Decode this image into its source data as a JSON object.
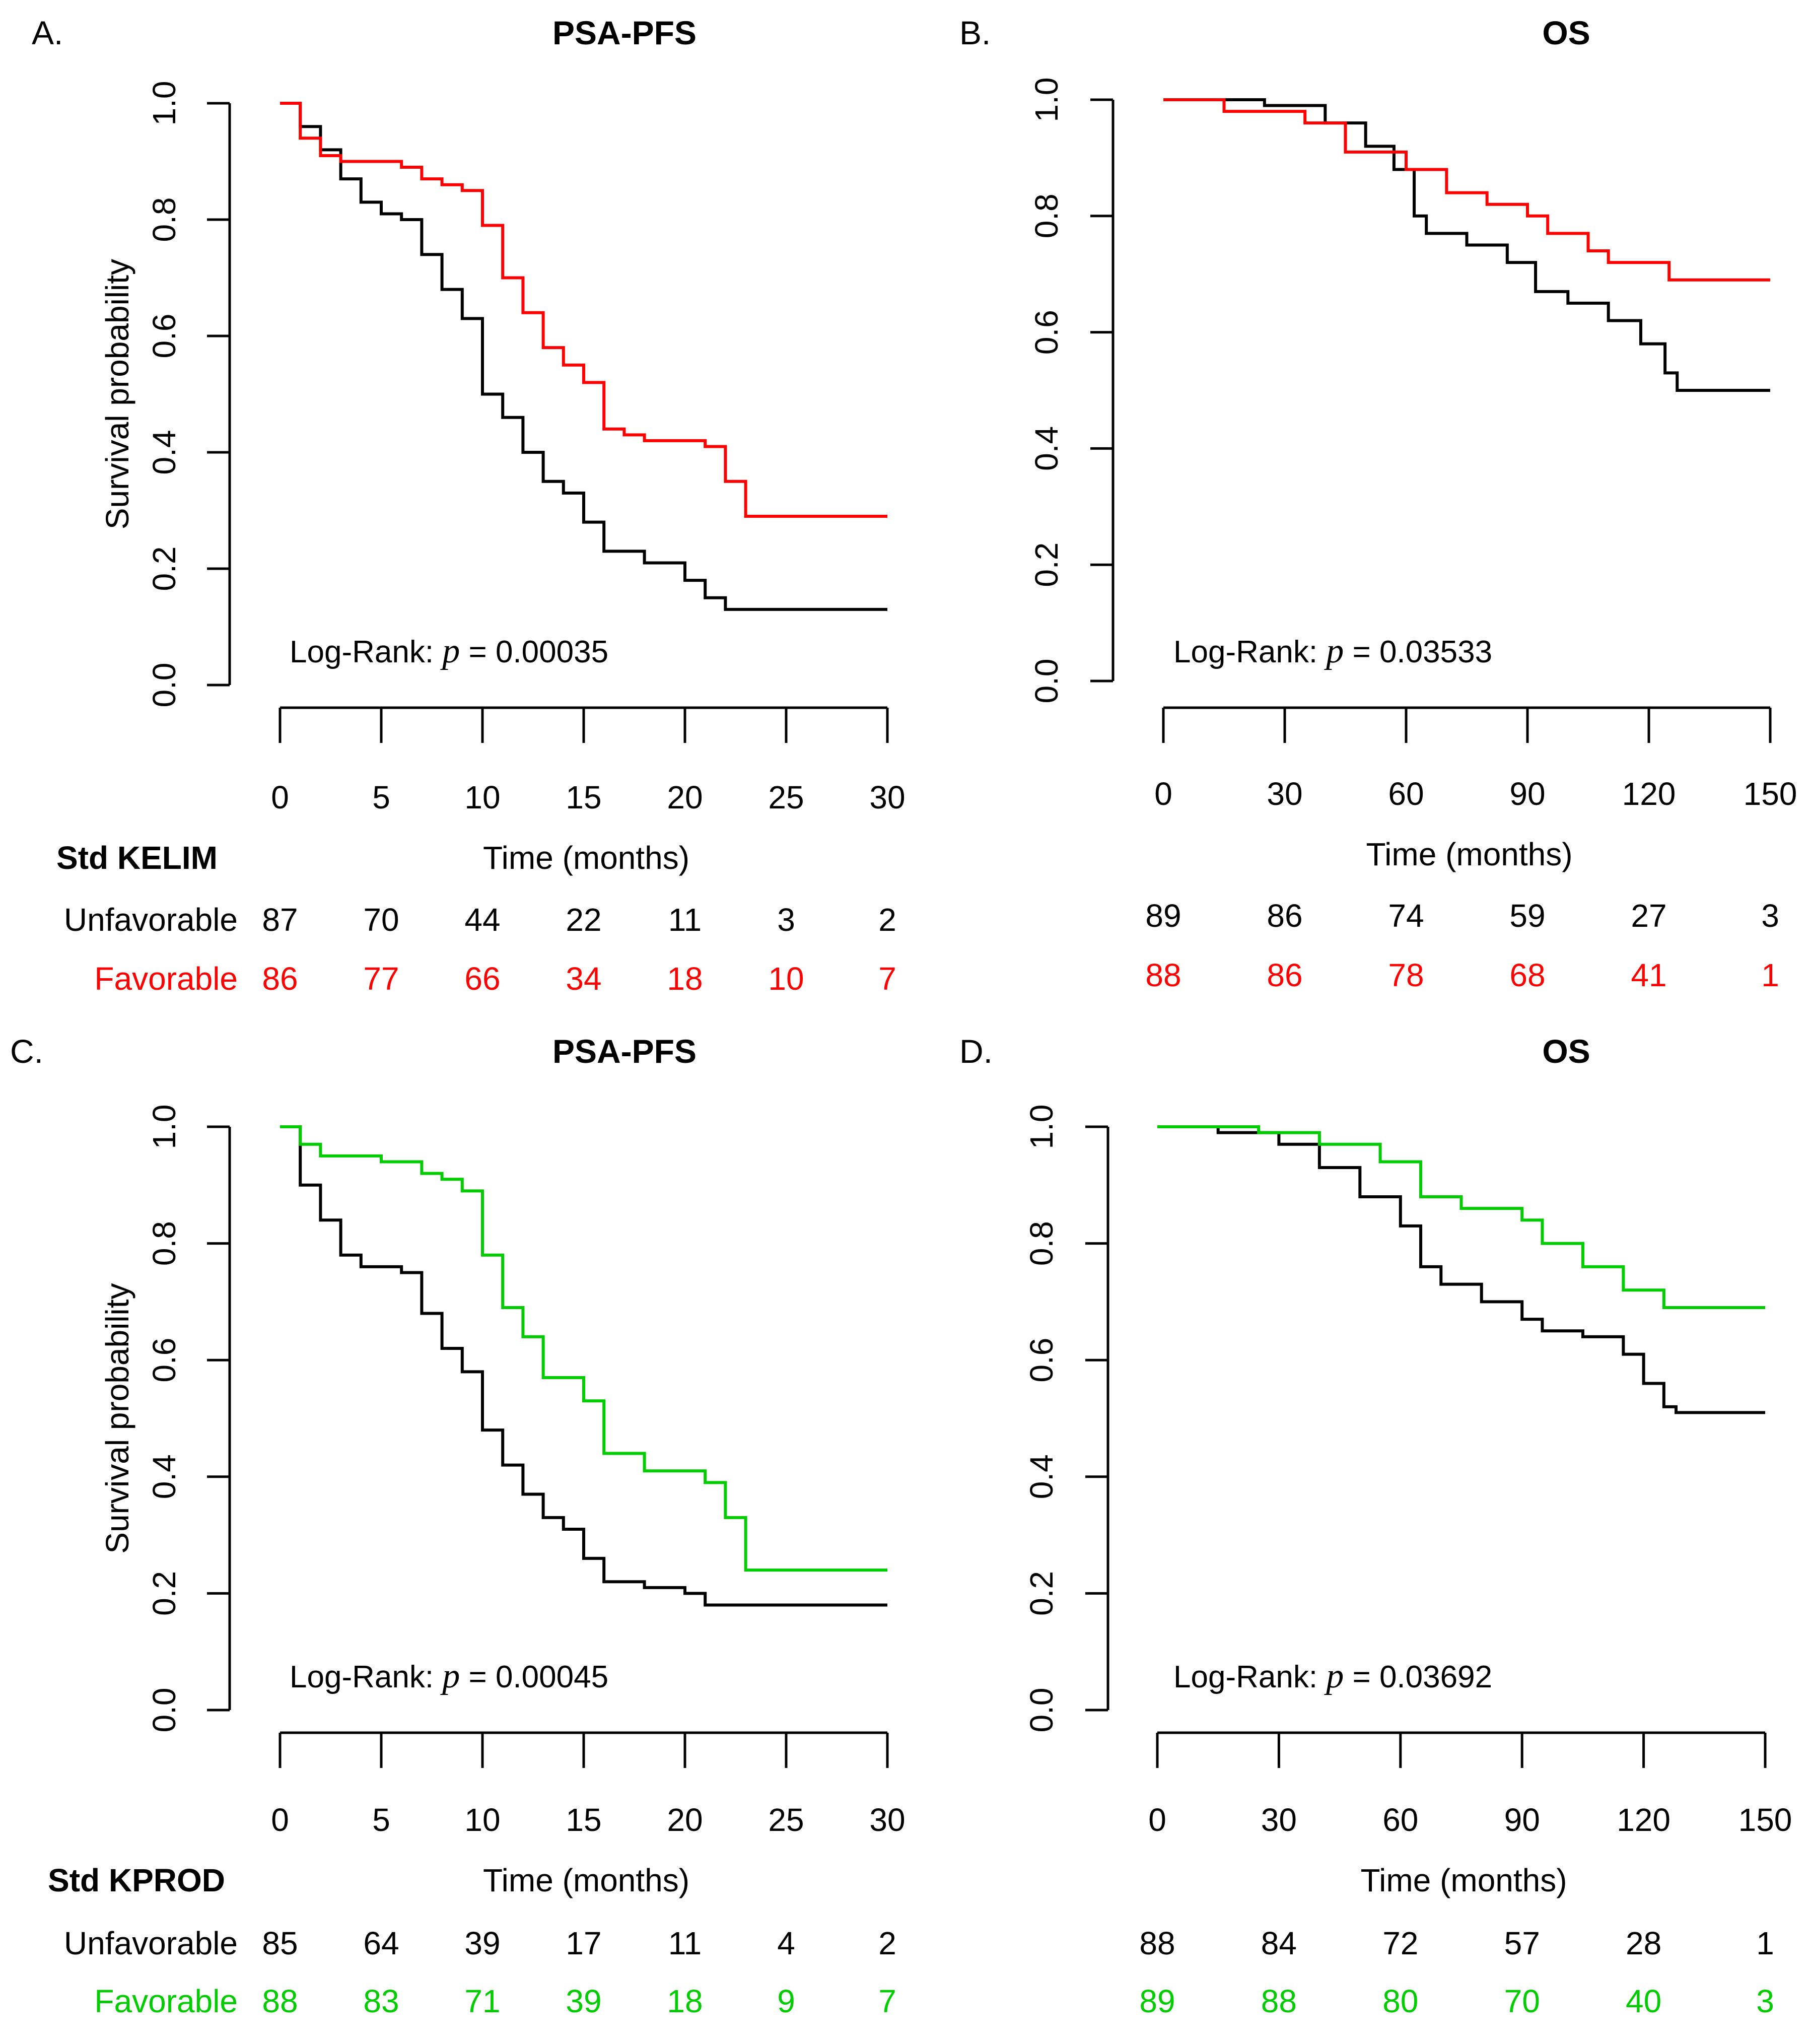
{
  "colors": {
    "unfavorable": "#000000",
    "kelim": "#ff0000",
    "kprod": "#00cc00"
  },
  "chart_data": [
    {
      "panel": "A.",
      "title": "PSA-PFS",
      "type": "line",
      "xlabel": "Time (months)",
      "ylabel": "Survival probability",
      "xlim": [
        0,
        30
      ],
      "ylim": [
        0,
        1
      ],
      "x_ticks": [
        "0",
        "5",
        "10",
        "15",
        "20",
        "25",
        "30"
      ],
      "y_ticks": [
        "0.0",
        "0.2",
        "0.4",
        "0.6",
        "0.8",
        "1.0"
      ],
      "logrank": {
        "label": "Log-Rank:",
        "p_symbol": "p",
        "p_text": "= 0.00035"
      },
      "risk_table": {
        "header": "Std KELIM",
        "rows": [
          {
            "name": "Unfavorable",
            "color": "#000000",
            "values": [
              "87",
              "70",
              "44",
              "22",
              "11",
              "3",
              "2"
            ]
          },
          {
            "name": "Favorable",
            "color": "#ff0000",
            "values": [
              "86",
              "77",
              "66",
              "34",
              "18",
              "10",
              "7"
            ]
          }
        ]
      },
      "series": [
        {
          "name": "Unfavorable",
          "color": "#000000",
          "points": [
            [
              0,
              1.0
            ],
            [
              1,
              0.96
            ],
            [
              2,
              0.92
            ],
            [
              3,
              0.87
            ],
            [
              4,
              0.83
            ],
            [
              5,
              0.81
            ],
            [
              6,
              0.8
            ],
            [
              7,
              0.74
            ],
            [
              8,
              0.68
            ],
            [
              9,
              0.63
            ],
            [
              10,
              0.5
            ],
            [
              11,
              0.46
            ],
            [
              12,
              0.4
            ],
            [
              13,
              0.35
            ],
            [
              14,
              0.33
            ],
            [
              15,
              0.28
            ],
            [
              16,
              0.23
            ],
            [
              18,
              0.21
            ],
            [
              20,
              0.18
            ],
            [
              21,
              0.15
            ],
            [
              22,
              0.13
            ],
            [
              30,
              0.13
            ]
          ]
        },
        {
          "name": "Favorable",
          "color": "#ff0000",
          "points": [
            [
              0,
              1.0
            ],
            [
              1,
              0.94
            ],
            [
              2,
              0.91
            ],
            [
              3,
              0.9
            ],
            [
              6,
              0.89
            ],
            [
              7,
              0.87
            ],
            [
              8,
              0.86
            ],
            [
              9,
              0.85
            ],
            [
              10,
              0.79
            ],
            [
              11,
              0.7
            ],
            [
              12,
              0.64
            ],
            [
              13,
              0.58
            ],
            [
              14,
              0.55
            ],
            [
              15,
              0.52
            ],
            [
              16,
              0.44
            ],
            [
              17,
              0.43
            ],
            [
              18,
              0.42
            ],
            [
              21,
              0.41
            ],
            [
              22,
              0.35
            ],
            [
              23,
              0.29
            ],
            [
              30,
              0.29
            ]
          ]
        }
      ]
    },
    {
      "panel": "B.",
      "title": "OS",
      "type": "line",
      "xlabel": "Time (months)",
      "ylabel": "",
      "xlim": [
        0,
        150
      ],
      "ylim": [
        0,
        1
      ],
      "x_ticks": [
        "0",
        "30",
        "60",
        "90",
        "120",
        "150"
      ],
      "y_ticks": [
        "0.0",
        "0.2",
        "0.4",
        "0.6",
        "0.8",
        "1.0"
      ],
      "logrank": {
        "label": "Log-Rank:",
        "p_symbol": "p",
        "p_text": "= 0.03533"
      },
      "risk_table": {
        "header": "",
        "rows": [
          {
            "name": "",
            "color": "#000000",
            "values": [
              "89",
              "86",
              "74",
              "59",
              "27",
              "3"
            ]
          },
          {
            "name": "",
            "color": "#ff0000",
            "values": [
              "88",
              "86",
              "78",
              "68",
              "41",
              "1"
            ]
          }
        ]
      },
      "series": [
        {
          "name": "Unfavorable",
          "color": "#000000",
          "points": [
            [
              0,
              1.0
            ],
            [
              25,
              0.99
            ],
            [
              40,
              0.96
            ],
            [
              50,
              0.92
            ],
            [
              57,
              0.88
            ],
            [
              62,
              0.8
            ],
            [
              65,
              0.77
            ],
            [
              75,
              0.75
            ],
            [
              85,
              0.72
            ],
            [
              92,
              0.67
            ],
            [
              100,
              0.65
            ],
            [
              110,
              0.62
            ],
            [
              118,
              0.58
            ],
            [
              124,
              0.53
            ],
            [
              127,
              0.5
            ],
            [
              150,
              0.5
            ]
          ]
        },
        {
          "name": "Favorable",
          "color": "#ff0000",
          "points": [
            [
              0,
              1.0
            ],
            [
              15,
              0.98
            ],
            [
              35,
              0.96
            ],
            [
              45,
              0.91
            ],
            [
              60,
              0.88
            ],
            [
              70,
              0.84
            ],
            [
              80,
              0.82
            ],
            [
              90,
              0.8
            ],
            [
              95,
              0.77
            ],
            [
              105,
              0.74
            ],
            [
              110,
              0.72
            ],
            [
              125,
              0.69
            ],
            [
              150,
              0.69
            ]
          ]
        }
      ]
    },
    {
      "panel": "C.",
      "title": "PSA-PFS",
      "type": "line",
      "xlabel": "Time (months)",
      "ylabel": "Survival probability",
      "xlim": [
        0,
        30
      ],
      "ylim": [
        0,
        1
      ],
      "x_ticks": [
        "0",
        "5",
        "10",
        "15",
        "20",
        "25",
        "30"
      ],
      "y_ticks": [
        "0.0",
        "0.2",
        "0.4",
        "0.6",
        "0.8",
        "1.0"
      ],
      "logrank": {
        "label": "Log-Rank:",
        "p_symbol": "p",
        "p_text": "= 0.00045"
      },
      "risk_table": {
        "header": "Std KPROD",
        "rows": [
          {
            "name": "Unfavorable",
            "color": "#000000",
            "values": [
              "85",
              "64",
              "39",
              "17",
              "11",
              "4",
              "2"
            ]
          },
          {
            "name": "Favorable",
            "color": "#00cc00",
            "values": [
              "88",
              "83",
              "71",
              "39",
              "18",
              "9",
              "7"
            ]
          }
        ]
      },
      "series": [
        {
          "name": "Unfavorable",
          "color": "#000000",
          "points": [
            [
              0,
              1.0
            ],
            [
              1,
              0.9
            ],
            [
              2,
              0.84
            ],
            [
              3,
              0.78
            ],
            [
              4,
              0.76
            ],
            [
              6,
              0.75
            ],
            [
              7,
              0.68
            ],
            [
              8,
              0.62
            ],
            [
              9,
              0.58
            ],
            [
              10,
              0.48
            ],
            [
              11,
              0.42
            ],
            [
              12,
              0.37
            ],
            [
              13,
              0.33
            ],
            [
              14,
              0.31
            ],
            [
              15,
              0.26
            ],
            [
              16,
              0.22
            ],
            [
              18,
              0.21
            ],
            [
              20,
              0.2
            ],
            [
              21,
              0.18
            ],
            [
              30,
              0.18
            ]
          ]
        },
        {
          "name": "Favorable",
          "color": "#00cc00",
          "points": [
            [
              0,
              1.0
            ],
            [
              1,
              0.97
            ],
            [
              2,
              0.95
            ],
            [
              5,
              0.94
            ],
            [
              7,
              0.92
            ],
            [
              8,
              0.91
            ],
            [
              9,
              0.89
            ],
            [
              10,
              0.78
            ],
            [
              11,
              0.69
            ],
            [
              12,
              0.64
            ],
            [
              13,
              0.57
            ],
            [
              15,
              0.53
            ],
            [
              16,
              0.44
            ],
            [
              18,
              0.41
            ],
            [
              21,
              0.39
            ],
            [
              22,
              0.33
            ],
            [
              23,
              0.24
            ],
            [
              30,
              0.24
            ]
          ]
        }
      ]
    },
    {
      "panel": "D.",
      "title": "OS",
      "type": "line",
      "xlabel": "Time (months)",
      "ylabel": "",
      "xlim": [
        0,
        150
      ],
      "ylim": [
        0,
        1
      ],
      "x_ticks": [
        "0",
        "30",
        "60",
        "90",
        "120",
        "150"
      ],
      "y_ticks": [
        "0.0",
        "0.2",
        "0.4",
        "0.6",
        "0.8",
        "1.0"
      ],
      "logrank": {
        "label": "Log-Rank:",
        "p_symbol": "p",
        "p_text": "= 0.03692"
      },
      "risk_table": {
        "header": "",
        "rows": [
          {
            "name": "",
            "color": "#000000",
            "values": [
              "88",
              "84",
              "72",
              "57",
              "28",
              "1"
            ]
          },
          {
            "name": "",
            "color": "#00cc00",
            "values": [
              "89",
              "88",
              "80",
              "70",
              "40",
              "3"
            ]
          }
        ]
      },
      "series": [
        {
          "name": "Unfavorable",
          "color": "#000000",
          "points": [
            [
              0,
              1.0
            ],
            [
              15,
              0.99
            ],
            [
              30,
              0.97
            ],
            [
              40,
              0.93
            ],
            [
              50,
              0.88
            ],
            [
              60,
              0.83
            ],
            [
              65,
              0.76
            ],
            [
              70,
              0.73
            ],
            [
              80,
              0.7
            ],
            [
              90,
              0.67
            ],
            [
              95,
              0.65
            ],
            [
              105,
              0.64
            ],
            [
              115,
              0.61
            ],
            [
              120,
              0.56
            ],
            [
              125,
              0.52
            ],
            [
              128,
              0.51
            ],
            [
              150,
              0.51
            ]
          ]
        },
        {
          "name": "Favorable",
          "color": "#00cc00",
          "points": [
            [
              0,
              1.0
            ],
            [
              25,
              0.99
            ],
            [
              40,
              0.97
            ],
            [
              55,
              0.94
            ],
            [
              65,
              0.88
            ],
            [
              75,
              0.86
            ],
            [
              90,
              0.84
            ],
            [
              95,
              0.8
            ],
            [
              105,
              0.76
            ],
            [
              115,
              0.72
            ],
            [
              125,
              0.69
            ],
            [
              150,
              0.69
            ]
          ]
        }
      ]
    }
  ]
}
